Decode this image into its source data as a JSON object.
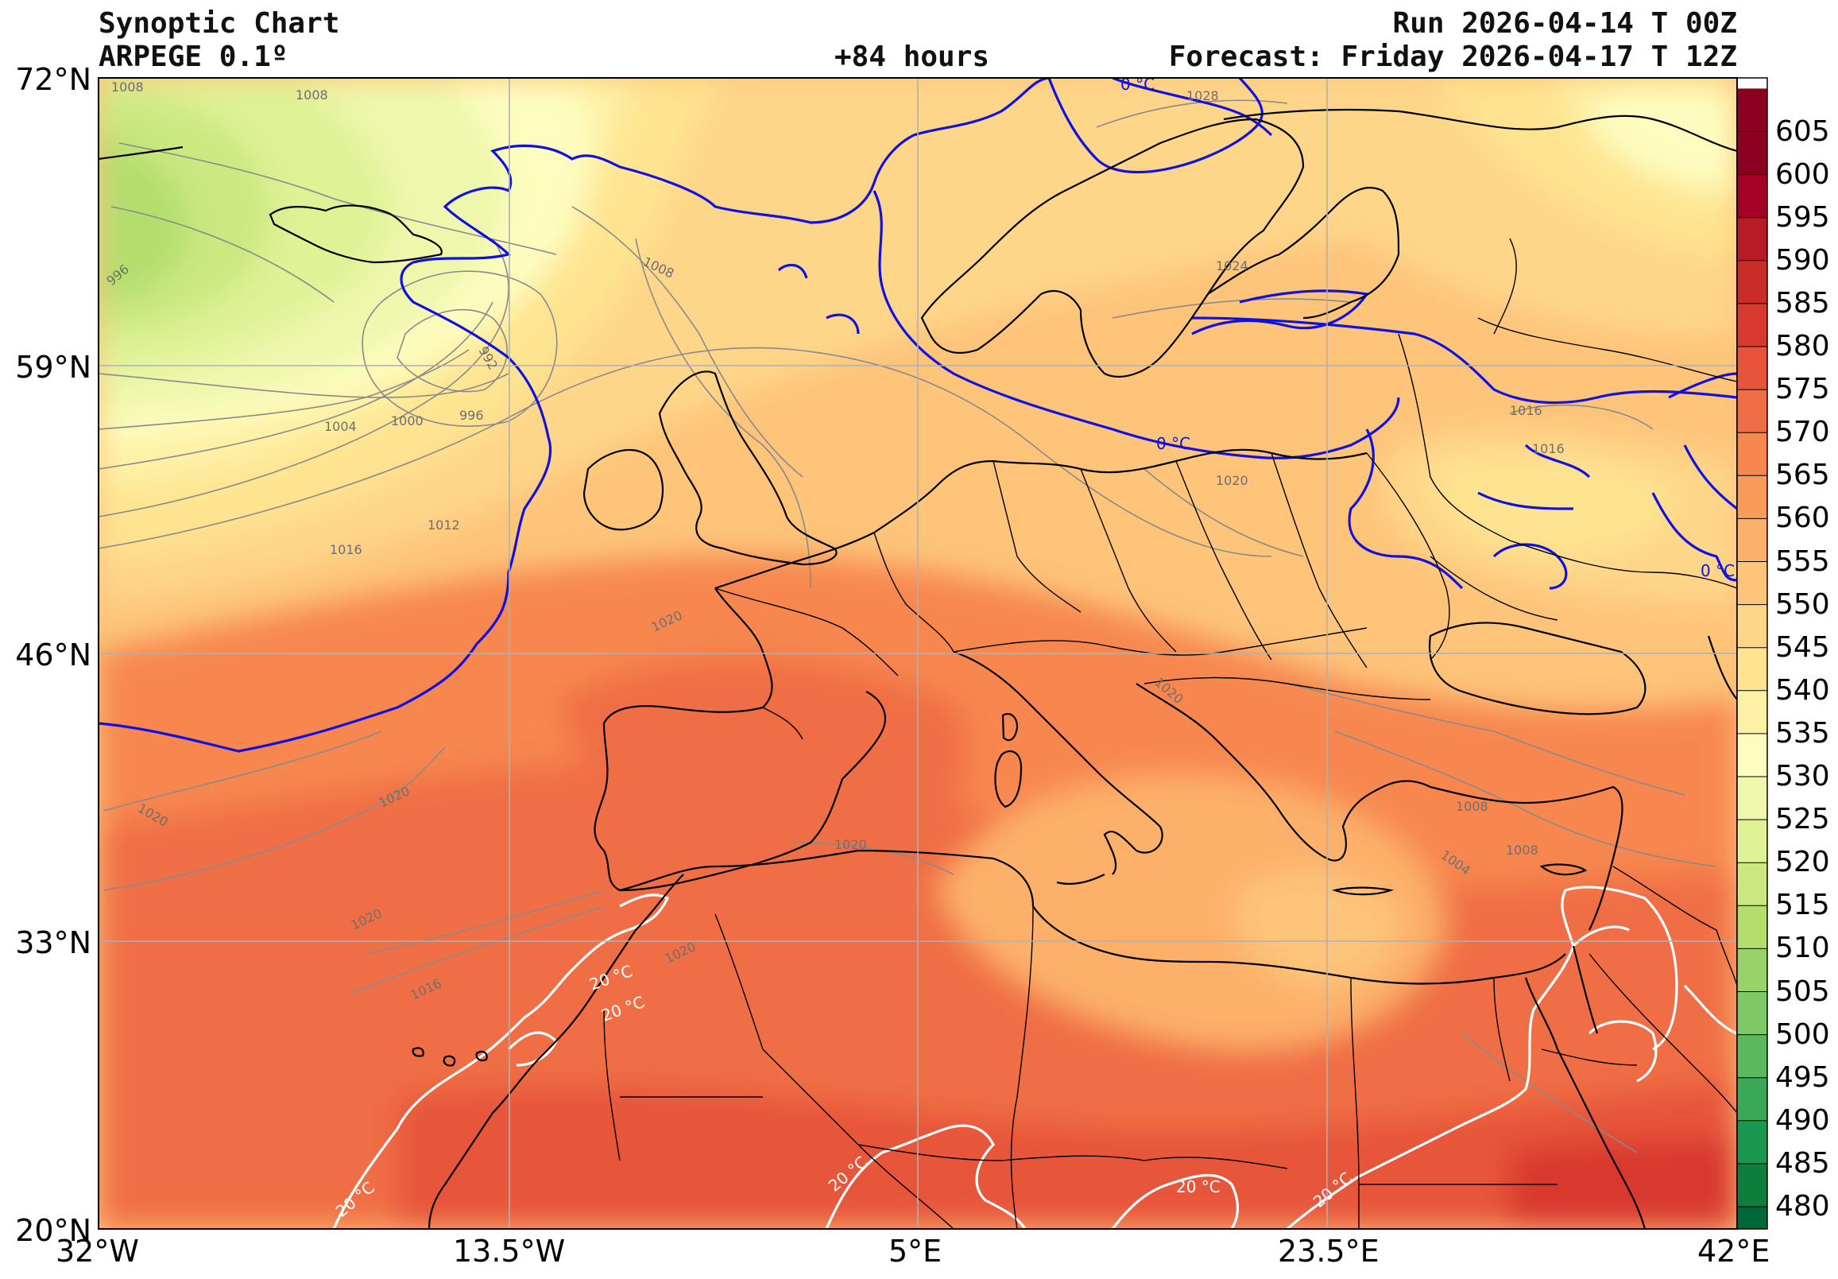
{
  "header": {
    "title": "Synoptic Chart",
    "model": "ARPEGE 0.1º",
    "lead": "+84 hours",
    "run": "Run 2026-04-14 T 00Z",
    "forecast": "Forecast: Friday 2026-04-17 T 12Z"
  },
  "axes": {
    "lat_labels": [
      "72°N",
      "59°N",
      "46°N",
      "33°N",
      "20°N"
    ],
    "lon_labels": [
      "32°W",
      "13.5°W",
      "5°E",
      "23.5°E",
      "42°E"
    ]
  },
  "colorbar": {
    "levels": [
      "480",
      "485",
      "490",
      "495",
      "500",
      "505",
      "510",
      "515",
      "520",
      "525",
      "530",
      "535",
      "540",
      "545",
      "550",
      "555",
      "560",
      "565",
      "570",
      "575",
      "580",
      "585",
      "590",
      "595",
      "600",
      "605"
    ],
    "colors": [
      "#006837",
      "#0f7d3c",
      "#1a9850",
      "#3aa857",
      "#5cb85e",
      "#7ec866",
      "#98d268",
      "#b3de6e",
      "#cbe881",
      "#dff295",
      "#eef7ac",
      "#fdfdc0",
      "#fef1a6",
      "#fee491",
      "#fed68a",
      "#fdc47a",
      "#fdb06b",
      "#fb9b5a",
      "#f7874f",
      "#f06e45",
      "#e7543b",
      "#d8392e",
      "#c92d27",
      "#b71c26",
      "#a50026",
      "#8b0020"
    ]
  },
  "map_labels": {
    "isobars": [
      "1008",
      "1008",
      "996",
      "992",
      "1000",
      "996",
      "1004",
      "1012",
      "1016",
      "1008",
      "1028",
      "1024",
      "1020",
      "1016",
      "1016",
      "1020",
      "1020",
      "1020",
      "1020",
      "1020",
      "1020",
      "1016",
      "1020",
      "1008",
      "1008",
      "1004"
    ],
    "isotherm_zero": [
      "0 °C",
      "0 °C",
      "0 °C"
    ],
    "isotherm_twenty": [
      "20 °C",
      "20 °C",
      "20 °C",
      "20 °C",
      "20 °C",
      "20 °C"
    ]
  }
}
